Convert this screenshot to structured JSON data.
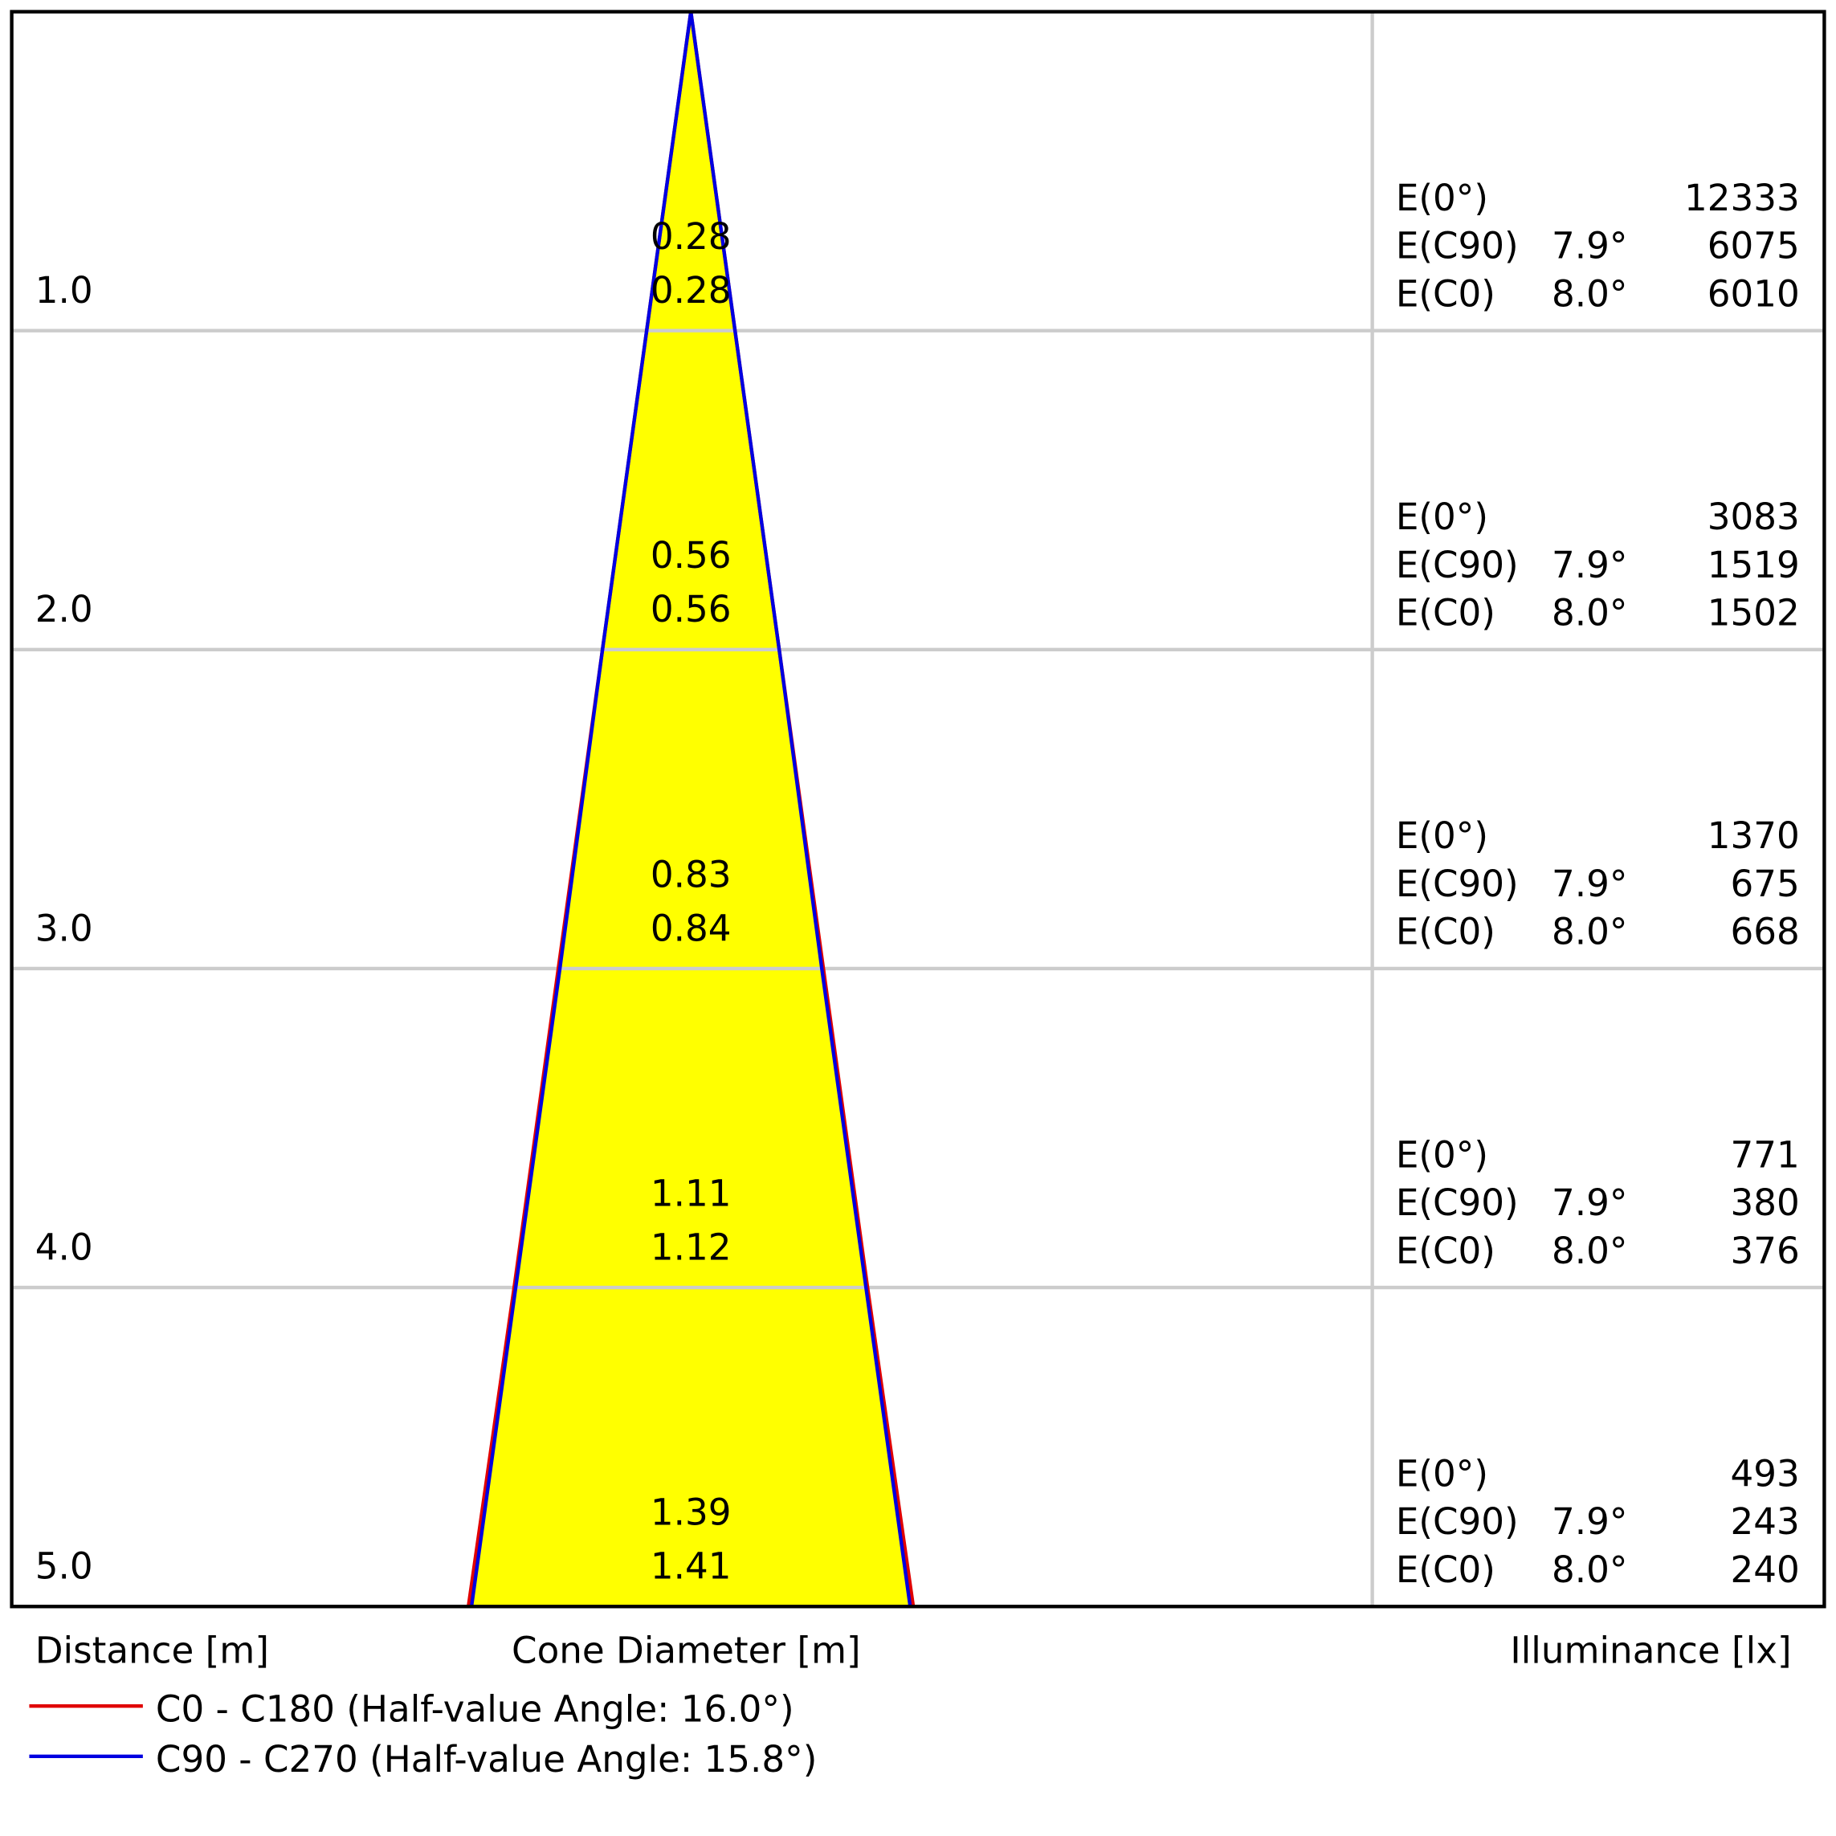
{
  "chart_data": {
    "type": "cone",
    "distances": [
      {
        "value": 1,
        "label": "1.0"
      },
      {
        "value": 2,
        "label": "2.0"
      },
      {
        "value": 3,
        "label": "3.0"
      },
      {
        "value": 4,
        "label": "4.0"
      },
      {
        "value": 5,
        "label": "5.0"
      }
    ],
    "ylim": [
      0,
      5
    ],
    "xlabel": "Distance [m]",
    "cone_label": "Cone Diameter [m]",
    "illuminance_label": "Illuminance [lx]",
    "fill": "#ffff00",
    "center": {
      "label": "E(0°)",
      "illuminance": [
        12333,
        3083,
        1370,
        771,
        493
      ]
    },
    "series": [
      {
        "name": "C0 - C180 (Half-value Angle: 16.0°)",
        "color": "#e00000",
        "row_label": "E(C0)",
        "half_angle_label": "8.0°",
        "diameters": [
          0.28,
          0.56,
          0.84,
          1.12,
          1.41
        ],
        "illuminance": [
          6010,
          1502,
          668,
          376,
          240
        ]
      },
      {
        "name": "C90 - C270 (Half-value Angle: 15.8°)",
        "color": "#0000e0",
        "row_label": "E(C90)",
        "half_angle_label": "7.9°",
        "diameters": [
          0.28,
          0.56,
          0.83,
          1.11,
          1.39
        ],
        "illuminance": [
          6075,
          1519,
          675,
          380,
          243
        ]
      }
    ]
  }
}
